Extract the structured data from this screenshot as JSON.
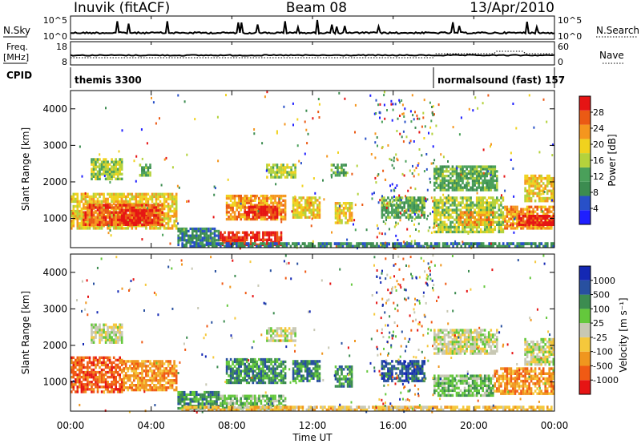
{
  "header": {
    "station": "Inuvik (fitACF)",
    "beam": "Beam 08",
    "date": "13/Apr/2010"
  },
  "strip_labels": {
    "nsky": "N.Sky",
    "nsearch": "N.Search",
    "freq_line1": "Freq.",
    "freq_line2": "[MHz]",
    "nave": "Nave",
    "cpid": "CPID",
    "nsky_ticks": [
      "10^5",
      "10^0"
    ],
    "nsearch_ticks": [
      "10^5",
      "10^0"
    ],
    "freq_ticks": [
      "18",
      "8"
    ],
    "nave_ticks": [
      "60",
      "0"
    ]
  },
  "cpid_segments": [
    {
      "label": "themis 3300",
      "start_hour": 0,
      "end_hour": 18
    },
    {
      "label": "normalsound (fast) 157",
      "start_hour": 18,
      "end_hour": 24
    }
  ],
  "colors": {
    "power": [
      "#1f1fff",
      "#2850c8",
      "#3c8c50",
      "#4aa05a",
      "#b4d23c",
      "#f0d21e",
      "#f5961e",
      "#eb5a14",
      "#e61414"
    ],
    "velocity": [
      "#e61414",
      "#f05a14",
      "#f0961e",
      "#f5c83c",
      "#c8c8b4",
      "#64c83c",
      "#3c8c50",
      "#2850a0",
      "#1428b4"
    ]
  },
  "chart_data": [
    {
      "type": "heatmap",
      "name": "power",
      "xlabel": "",
      "ylabel": "Slant Range [km]",
      "xlim": [
        0,
        24
      ],
      "ylim": [
        200,
        4500
      ],
      "y_ticks": [
        "1000",
        "2000",
        "3000",
        "4000"
      ],
      "colorbar_label": "Power [dB]",
      "colorbar_ticks": [
        "4",
        "8",
        "12",
        "16",
        "20",
        "24",
        "28"
      ],
      "regions": [
        {
          "t0": 0.0,
          "t1": 5.3,
          "r0": 700,
          "r1": 1700,
          "level": 5
        },
        {
          "t0": 0.6,
          "t1": 4.6,
          "r0": 800,
          "r1": 1400,
          "level": 7
        },
        {
          "t0": 2.5,
          "t1": 4.4,
          "r0": 850,
          "r1": 1250,
          "level": 8
        },
        {
          "t0": 1.0,
          "t1": 2.6,
          "r0": 2050,
          "r1": 2650,
          "level": 4
        },
        {
          "t0": 3.4,
          "t1": 4.0,
          "r0": 2150,
          "r1": 2500,
          "level": 3
        },
        {
          "t0": 5.3,
          "t1": 7.4,
          "r0": 250,
          "r1": 750,
          "level": 2
        },
        {
          "t0": 7.4,
          "t1": 10.5,
          "r0": 250,
          "r1": 650,
          "level": 8
        },
        {
          "t0": 7.7,
          "t1": 10.7,
          "r0": 950,
          "r1": 1650,
          "level": 6
        },
        {
          "t0": 8.6,
          "t1": 10.3,
          "r0": 1000,
          "r1": 1350,
          "level": 8
        },
        {
          "t0": 9.7,
          "t1": 11.2,
          "r0": 2100,
          "r1": 2500,
          "level": 4
        },
        {
          "t0": 11.0,
          "t1": 12.4,
          "r0": 1000,
          "r1": 1600,
          "level": 5
        },
        {
          "t0": 12.9,
          "t1": 13.7,
          "r0": 2150,
          "r1": 2500,
          "level": 3
        },
        {
          "t0": 13.1,
          "t1": 14.0,
          "r0": 850,
          "r1": 1450,
          "level": 5
        },
        {
          "t0": 15.4,
          "t1": 17.6,
          "r0": 1000,
          "r1": 1600,
          "level": 3
        },
        {
          "t0": 18.0,
          "t1": 21.5,
          "r0": 600,
          "r1": 1600,
          "level": 4
        },
        {
          "t0": 19.2,
          "t1": 21.0,
          "r0": 800,
          "r1": 1200,
          "level": 6
        },
        {
          "t0": 18.0,
          "t1": 21.2,
          "r0": 1750,
          "r1": 2450,
          "level": 3
        },
        {
          "t0": 21.5,
          "t1": 24.0,
          "r0": 700,
          "r1": 1350,
          "level": 6
        },
        {
          "t0": 22.2,
          "t1": 24.0,
          "r0": 800,
          "r1": 1100,
          "level": 8
        },
        {
          "t0": 22.5,
          "t1": 24.0,
          "r0": 1450,
          "r1": 2200,
          "level": 5
        },
        {
          "t0": 5.5,
          "t1": 24.0,
          "r0": 200,
          "r1": 350,
          "level": 2
        }
      ]
    },
    {
      "type": "heatmap",
      "name": "velocity",
      "xlabel": "Time UT",
      "ylabel": "Slant Range [km]",
      "xlim": [
        0,
        24
      ],
      "ylim": [
        200,
        4500
      ],
      "x_ticks": [
        "00:00",
        "04:00",
        "08:00",
        "12:00",
        "16:00",
        "20:00",
        "00:00"
      ],
      "y_ticks": [
        "1000",
        "2000",
        "3000",
        "4000"
      ],
      "colorbar_label": "Velocity [m s⁻¹]",
      "colorbar_ticks": [
        "-1000",
        "-500",
        "-100",
        "-25",
        "25",
        "100",
        "500",
        "1000"
      ],
      "regions": [
        {
          "t0": 0.0,
          "t1": 2.6,
          "r0": 700,
          "r1": 1700,
          "level": 1
        },
        {
          "t0": 2.6,
          "t1": 5.3,
          "r0": 750,
          "r1": 1600,
          "level": 2
        },
        {
          "t0": 1.0,
          "t1": 2.6,
          "r0": 2050,
          "r1": 2600,
          "level": 4
        },
        {
          "t0": 5.3,
          "t1": 7.4,
          "r0": 250,
          "r1": 750,
          "level": 6
        },
        {
          "t0": 7.4,
          "t1": 10.7,
          "r0": 250,
          "r1": 650,
          "level": 5
        },
        {
          "t0": 7.7,
          "t1": 10.7,
          "r0": 950,
          "r1": 1650,
          "level": 6
        },
        {
          "t0": 9.7,
          "t1": 11.2,
          "r0": 2100,
          "r1": 2500,
          "level": 4
        },
        {
          "t0": 11.0,
          "t1": 12.4,
          "r0": 1000,
          "r1": 1600,
          "level": 6
        },
        {
          "t0": 13.1,
          "t1": 14.0,
          "r0": 850,
          "r1": 1450,
          "level": 6
        },
        {
          "t0": 15.4,
          "t1": 17.6,
          "r0": 1000,
          "r1": 1600,
          "level": 7
        },
        {
          "t0": 18.0,
          "t1": 21.2,
          "r0": 1750,
          "r1": 2450,
          "level": 4
        },
        {
          "t0": 18.0,
          "t1": 21.0,
          "r0": 600,
          "r1": 1200,
          "level": 5
        },
        {
          "t0": 21.0,
          "t1": 24.0,
          "r0": 650,
          "r1": 1400,
          "level": 2
        },
        {
          "t0": 22.5,
          "t1": 24.0,
          "r0": 1450,
          "r1": 2200,
          "level": 4
        },
        {
          "t0": 5.5,
          "t1": 24.0,
          "r0": 200,
          "r1": 350,
          "level": 3
        }
      ]
    }
  ]
}
